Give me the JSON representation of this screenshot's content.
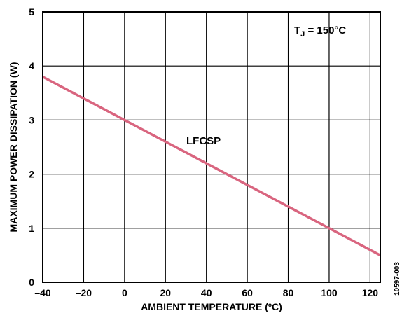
{
  "chart_data": {
    "type": "line",
    "xlabel": "AMBIENT TEMPERATURE (ºC)",
    "ylabel": "MAXIMUM POWER DISSIPATION (W)",
    "xlim": [
      -40,
      125
    ],
    "ylim": [
      0,
      5
    ],
    "x_ticks": [
      -40,
      -20,
      0,
      20,
      40,
      60,
      80,
      100,
      120
    ],
    "x_tick_labels": [
      "–40",
      "–20",
      "0",
      "20",
      "40",
      "60",
      "80",
      "100",
      "120"
    ],
    "y_ticks": [
      0,
      1,
      2,
      3,
      4,
      5
    ],
    "y_tick_labels": [
      "0",
      "1",
      "2",
      "3",
      "4",
      "5"
    ],
    "grid": true,
    "series": [
      {
        "name": "LFCSP",
        "color": "#d9657f",
        "x": [
          -40,
          125
        ],
        "y": [
          3.8,
          0.5
        ]
      }
    ],
    "annotations": {
      "condition_main": "T",
      "condition_sub": "J",
      "condition_value": " = 150°C",
      "figure_id": "10597-003"
    }
  }
}
